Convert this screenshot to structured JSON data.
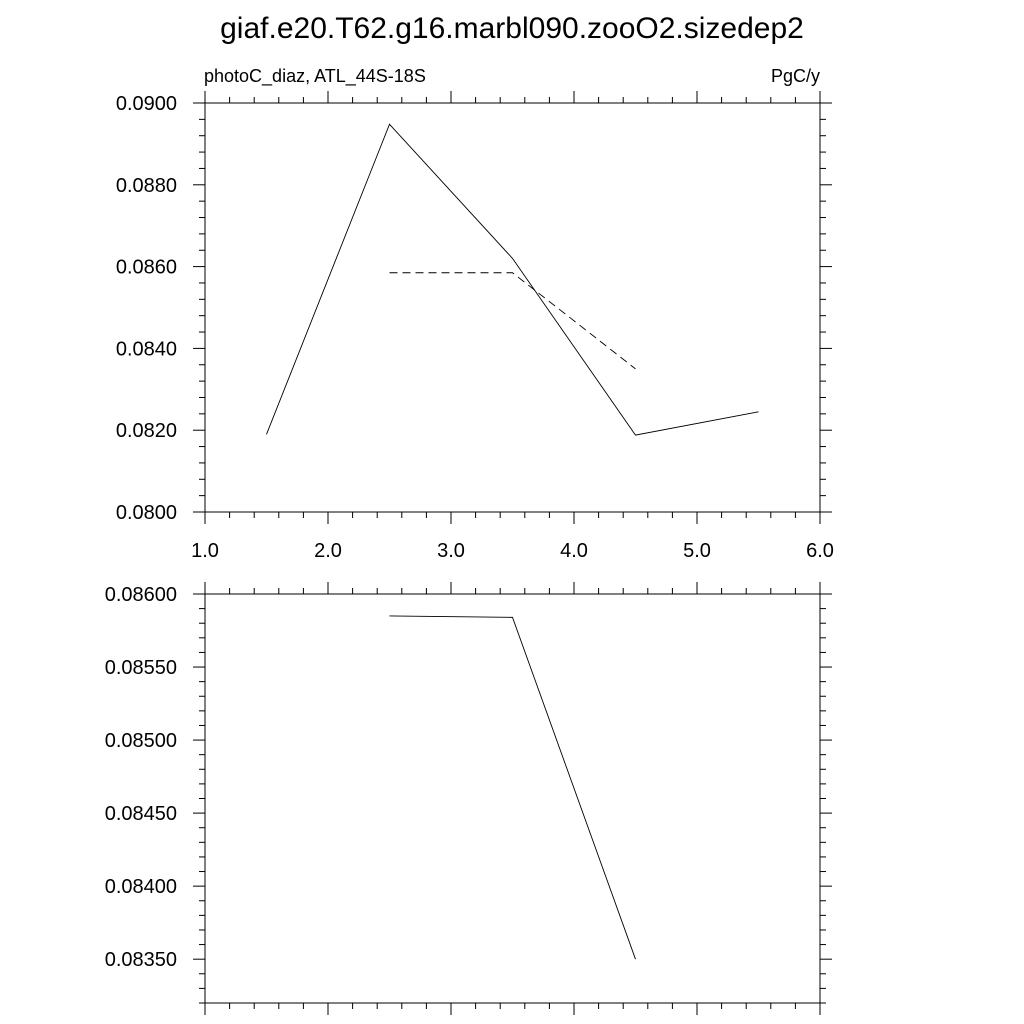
{
  "title": "giaf.e20.T62.g16.marbl090.zooO2.sizedep2",
  "chart_data": [
    {
      "type": "line",
      "subtitle_left": "photoC_diaz, ATL_44S-18S",
      "subtitle_right": "PgC/y",
      "xlim": [
        1.0,
        6.0
      ],
      "ylim": [
        0.08,
        0.09
      ],
      "x_ticks": [
        "1.0",
        "2.0",
        "3.0",
        "4.0",
        "5.0",
        "6.0"
      ],
      "y_ticks": [
        "0.0800",
        "0.0820",
        "0.0840",
        "0.0860",
        "0.0880",
        "0.0900"
      ],
      "series": [
        {
          "style": "solid",
          "color": "#000000",
          "x": [
            1.5,
            2.5,
            3.5,
            4.5,
            5.5
          ],
          "y": [
            0.0819,
            0.08948,
            0.0862,
            0.08188,
            0.08245
          ]
        },
        {
          "style": "dashed",
          "color": "#000000",
          "x": [
            2.5,
            3.5,
            4.5
          ],
          "y": [
            0.08585,
            0.08585,
            0.0835
          ]
        }
      ],
      "grid": false
    },
    {
      "type": "line",
      "xlim": [
        1.0,
        6.0
      ],
      "ylim": [
        0.0832,
        0.086
      ],
      "y_ticks": [
        "0.08350",
        "0.08400",
        "0.08450",
        "0.08500",
        "0.08550",
        "0.08600"
      ],
      "series": [
        {
          "style": "solid",
          "color": "#000000",
          "x": [
            2.5,
            3.5,
            4.5
          ],
          "y": [
            0.08585,
            0.08584,
            0.0835
          ]
        }
      ],
      "grid": false
    }
  ]
}
